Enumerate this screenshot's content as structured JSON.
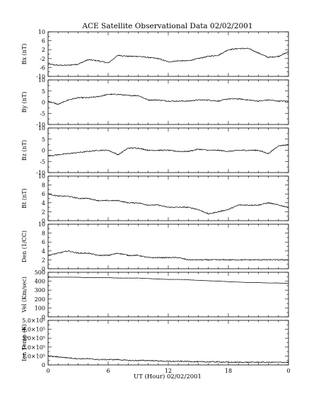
{
  "title": "ACE Satellite Observational Data   02/02/2001",
  "xlabel": "UT (Hour)  02/02/2001",
  "chart_data": [
    {
      "type": "line",
      "ylabel": "Bx (nT)",
      "ylim": [
        -10,
        10
      ],
      "yticks": [
        "10",
        "6",
        "2",
        "-2",
        "-6",
        "-10"
      ],
      "ytick_values": [
        10,
        6,
        2,
        -2,
        -6,
        -10
      ],
      "xlim": [
        0,
        24
      ],
      "x": [
        0,
        1,
        2,
        3,
        4,
        5,
        6,
        7,
        8,
        9,
        10,
        11,
        12,
        13,
        14,
        15,
        16,
        17,
        18,
        19,
        20,
        21,
        22,
        23,
        24
      ],
      "y": [
        -4.5,
        -5,
        -5,
        -4.5,
        -2.5,
        -3,
        -4,
        -0.5,
        -1,
        -1,
        -1.5,
        -2,
        -3.5,
        -3,
        -3,
        -2,
        -1,
        -0.5,
        2,
        2.5,
        2.5,
        0.5,
        -1.5,
        -1,
        1
      ]
    },
    {
      "type": "line",
      "ylabel": "By (nT)",
      "ylim": [
        -10,
        10
      ],
      "yticks": [
        "10",
        "5",
        "0",
        "-5",
        "-10"
      ],
      "ytick_values": [
        10,
        5,
        0,
        -5,
        -10
      ],
      "xlim": [
        0,
        24
      ],
      "x": [
        0,
        1,
        2,
        3,
        4,
        5,
        6,
        7,
        8,
        9,
        10,
        11,
        12,
        13,
        14,
        15,
        16,
        17,
        18,
        19,
        20,
        21,
        22,
        23,
        24
      ],
      "y": [
        0.5,
        -1,
        1,
        2,
        2,
        2.5,
        3.5,
        3.5,
        3,
        3,
        1,
        1,
        0.5,
        0.5,
        0.5,
        1,
        1,
        0.5,
        1.5,
        1.5,
        1,
        0.5,
        1,
        0.5,
        0.5
      ]
    },
    {
      "type": "line",
      "ylabel": "Bz (nT)",
      "ylim": [
        -10,
        10
      ],
      "yticks": [
        "10",
        "5",
        "0",
        "-5",
        "-10"
      ],
      "ytick_values": [
        10,
        5,
        0,
        -5,
        -10
      ],
      "xlim": [
        0,
        24
      ],
      "x": [
        0,
        1,
        2,
        3,
        4,
        5,
        6,
        7,
        8,
        9,
        10,
        11,
        12,
        13,
        14,
        15,
        16,
        17,
        18,
        19,
        20,
        21,
        22,
        23,
        24
      ],
      "y": [
        -2.5,
        -2,
        -1.5,
        -1,
        -0.5,
        0,
        0,
        -2,
        1,
        1,
        0,
        0,
        0,
        -0.5,
        -0.5,
        0.5,
        0,
        0,
        -0.5,
        0,
        0,
        0,
        -1.5,
        2,
        2.5
      ]
    },
    {
      "type": "line",
      "ylabel": "Bt (nT)",
      "ylim": [
        0,
        10
      ],
      "yticks": [
        "10",
        "8",
        "6",
        "4",
        "2",
        "0"
      ],
      "ytick_values": [
        10,
        8,
        6,
        4,
        2,
        0
      ],
      "xlim": [
        0,
        24
      ],
      "x": [
        0,
        1,
        2,
        3,
        4,
        5,
        6,
        7,
        8,
        9,
        10,
        11,
        12,
        13,
        14,
        15,
        16,
        17,
        18,
        19,
        20,
        21,
        22,
        23,
        24
      ],
      "y": [
        6,
        5.5,
        5.5,
        5,
        5,
        4.5,
        4.5,
        4.5,
        4,
        4,
        3.5,
        3.5,
        3,
        3,
        3,
        2.5,
        1.5,
        2,
        2.5,
        3.5,
        3.5,
        3.5,
        4,
        3.5,
        3
      ]
    },
    {
      "type": "line",
      "ylabel": "Den (1/CC)",
      "ylim": [
        0,
        10
      ],
      "yticks": [
        "10",
        "8",
        "6",
        "4",
        "2",
        "0"
      ],
      "ytick_values": [
        10,
        8,
        6,
        4,
        2,
        0
      ],
      "xlim": [
        0,
        24
      ],
      "x": [
        0,
        1,
        2,
        3,
        4,
        5,
        6,
        7,
        8,
        9,
        10,
        11,
        12,
        13,
        14,
        15,
        16,
        17,
        18,
        19,
        20,
        21,
        22,
        23,
        24
      ],
      "y": [
        3,
        3.5,
        4,
        3.5,
        3.5,
        3,
        3,
        3.5,
        3,
        3,
        2.5,
        2.5,
        2.5,
        2.5,
        2,
        2,
        2,
        2,
        2,
        2,
        2,
        2,
        2,
        2,
        2
      ]
    },
    {
      "type": "line",
      "ylabel": "Vel (Km/sec)",
      "ylim": [
        0,
        500
      ],
      "yticks": [
        "500",
        "400",
        "300",
        "200",
        "100",
        "0"
      ],
      "ytick_values": [
        500,
        400,
        300,
        200,
        100,
        0
      ],
      "xlim": [
        0,
        24
      ],
      "x": [
        0,
        1,
        2,
        3,
        4,
        5,
        6,
        7,
        8,
        9,
        10,
        11,
        12,
        13,
        14,
        15,
        16,
        17,
        18,
        19,
        20,
        21,
        22,
        23,
        24
      ],
      "y": [
        445,
        445,
        445,
        445,
        440,
        440,
        440,
        435,
        435,
        435,
        430,
        425,
        420,
        420,
        415,
        410,
        405,
        400,
        395,
        390,
        385,
        385,
        380,
        380,
        375
      ]
    },
    {
      "type": "line",
      "ylabel": "Ion Temp (K)",
      "ylim": [
        0,
        500000
      ],
      "yticks": [
        "5.0×10⁵",
        "4.0×10⁵",
        "3.0×10⁵",
        "2.0×10⁵",
        "1.0×10⁵",
        "0"
      ],
      "ytick_values": [
        500000,
        400000,
        300000,
        200000,
        100000,
        0
      ],
      "xlim": [
        0,
        24
      ],
      "xticks": [
        "0",
        "6",
        "12",
        "18",
        "0"
      ],
      "xtick_values": [
        0,
        6,
        12,
        18,
        24
      ],
      "x": [
        0,
        1,
        2,
        3,
        4,
        5,
        6,
        7,
        8,
        9,
        10,
        11,
        12,
        13,
        14,
        15,
        16,
        17,
        18,
        19,
        20,
        21,
        22,
        23,
        24
      ],
      "y": [
        100000,
        90000,
        80000,
        70000,
        70000,
        60000,
        60000,
        60000,
        50000,
        50000,
        50000,
        45000,
        40000,
        40000,
        40000,
        35000,
        35000,
        35000,
        30000,
        30000,
        30000,
        30000,
        30000,
        30000,
        30000
      ]
    }
  ]
}
